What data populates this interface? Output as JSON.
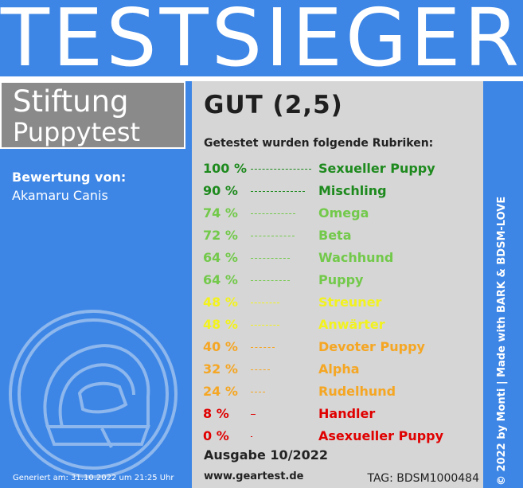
{
  "banner_title": "TESTSIEGER",
  "brand": {
    "line1": "Stiftung",
    "line2": "Puppytest"
  },
  "reviewer": {
    "label": "Bewertung von:",
    "name": "Akamaru Canis"
  },
  "generated": "Generiert am: 31.10.2022 um 21:25 Uhr",
  "grade": "GUT (2,5)",
  "intro": "Getestet wurden folgende Rubriken:",
  "rubrics": [
    {
      "pct": "100 %",
      "value": 100,
      "label": "Sexueller Puppy",
      "color": "#1e8a1e"
    },
    {
      "pct": "90 %",
      "value": 90,
      "label": "Mischling",
      "color": "#1e8a1e"
    },
    {
      "pct": "74 %",
      "value": 74,
      "label": "Omega",
      "color": "#72c94a"
    },
    {
      "pct": "72 %",
      "value": 72,
      "label": "Beta",
      "color": "#72c94a"
    },
    {
      "pct": "64 %",
      "value": 64,
      "label": "Wachhund",
      "color": "#72c94a"
    },
    {
      "pct": "64 %",
      "value": 64,
      "label": "Puppy",
      "color": "#72c94a"
    },
    {
      "pct": "48 %",
      "value": 48,
      "label": "Streuner",
      "color": "#f2f21e"
    },
    {
      "pct": "48 %",
      "value": 48,
      "label": "Anwärter",
      "color": "#f2f21e"
    },
    {
      "pct": "40 %",
      "value": 40,
      "label": "Devoter Puppy",
      "color": "#f5a623"
    },
    {
      "pct": "32 %",
      "value": 32,
      "label": "Alpha",
      "color": "#f5a623"
    },
    {
      "pct": "24 %",
      "value": 24,
      "label": "Rudelhund",
      "color": "#f5a623"
    },
    {
      "pct": "8 %",
      "value": 8,
      "label": "Handler",
      "color": "#e00000"
    },
    {
      "pct": "0 %",
      "value": 0,
      "label": "Asexueller Puppy",
      "color": "#e00000"
    }
  ],
  "issue": "Ausgabe 10/2022",
  "url": "www.geartest.de",
  "tag": "TAG: BDSM1000484",
  "credit": "© 2022 by Monti | Made with BARK & BDSM-LOVE"
}
